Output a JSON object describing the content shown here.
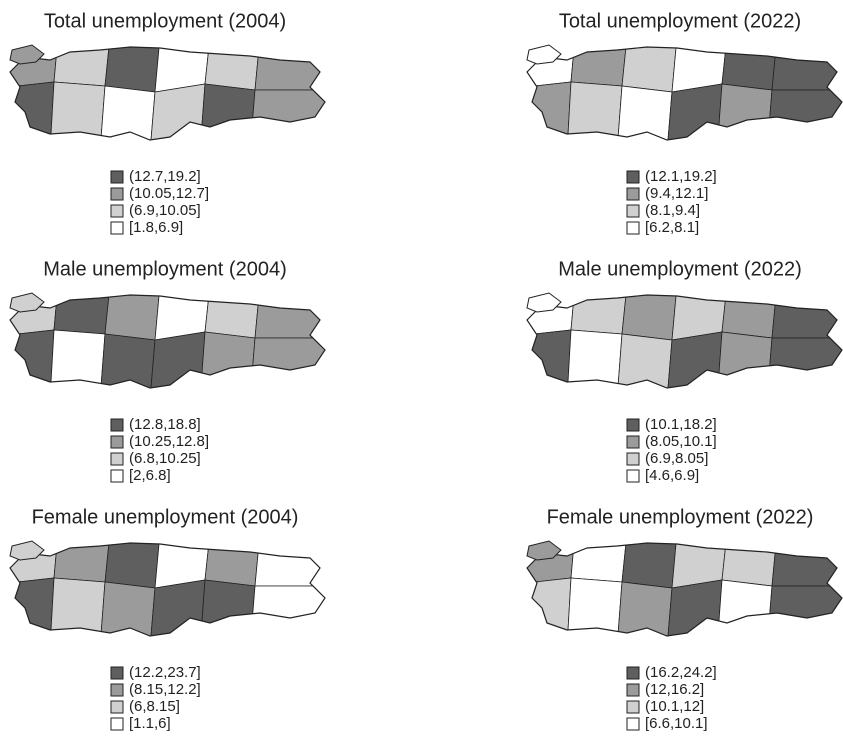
{
  "legend_colors": [
    "#5f5f5f",
    "#9b9b9b",
    "#d0d0d0",
    "#ffffff"
  ],
  "panels": [
    {
      "title": "Total unemployment (2004)",
      "legend": [
        "(12.7,19.2]",
        "(10.05,12.7]",
        "(6.9,10.05]",
        "[1.8,6.9]"
      ]
    },
    {
      "title": "Total unemployment (2022)",
      "legend": [
        "(12.1,19.2]",
        "(9.4,12.1]",
        "(8.1,9.4]",
        "[6.2,8.1]"
      ]
    },
    {
      "title": "Male unemployment (2004)",
      "legend": [
        "(12.8,18.8]",
        "(10.25,12.8]",
        "(6.8,10.25]",
        "[2,6.8]"
      ]
    },
    {
      "title": "Male unemployment (2022)",
      "legend": [
        "(10.1,18.2]",
        "(8.05,10.1]",
        "(6.9,8.05]",
        "[4.6,6.9]"
      ]
    },
    {
      "title": "Female unemployment (2004)",
      "legend": [
        "(12.2,23.7]",
        "(8.15,12.2]",
        "(6,8.15]",
        "[1.1,6]"
      ]
    },
    {
      "title": "Female unemployment (2022)",
      "legend": [
        "(16.2,24.2]",
        "(12,16.2]",
        "(10.1,12]",
        "[6.6,10.1]"
      ]
    }
  ]
}
